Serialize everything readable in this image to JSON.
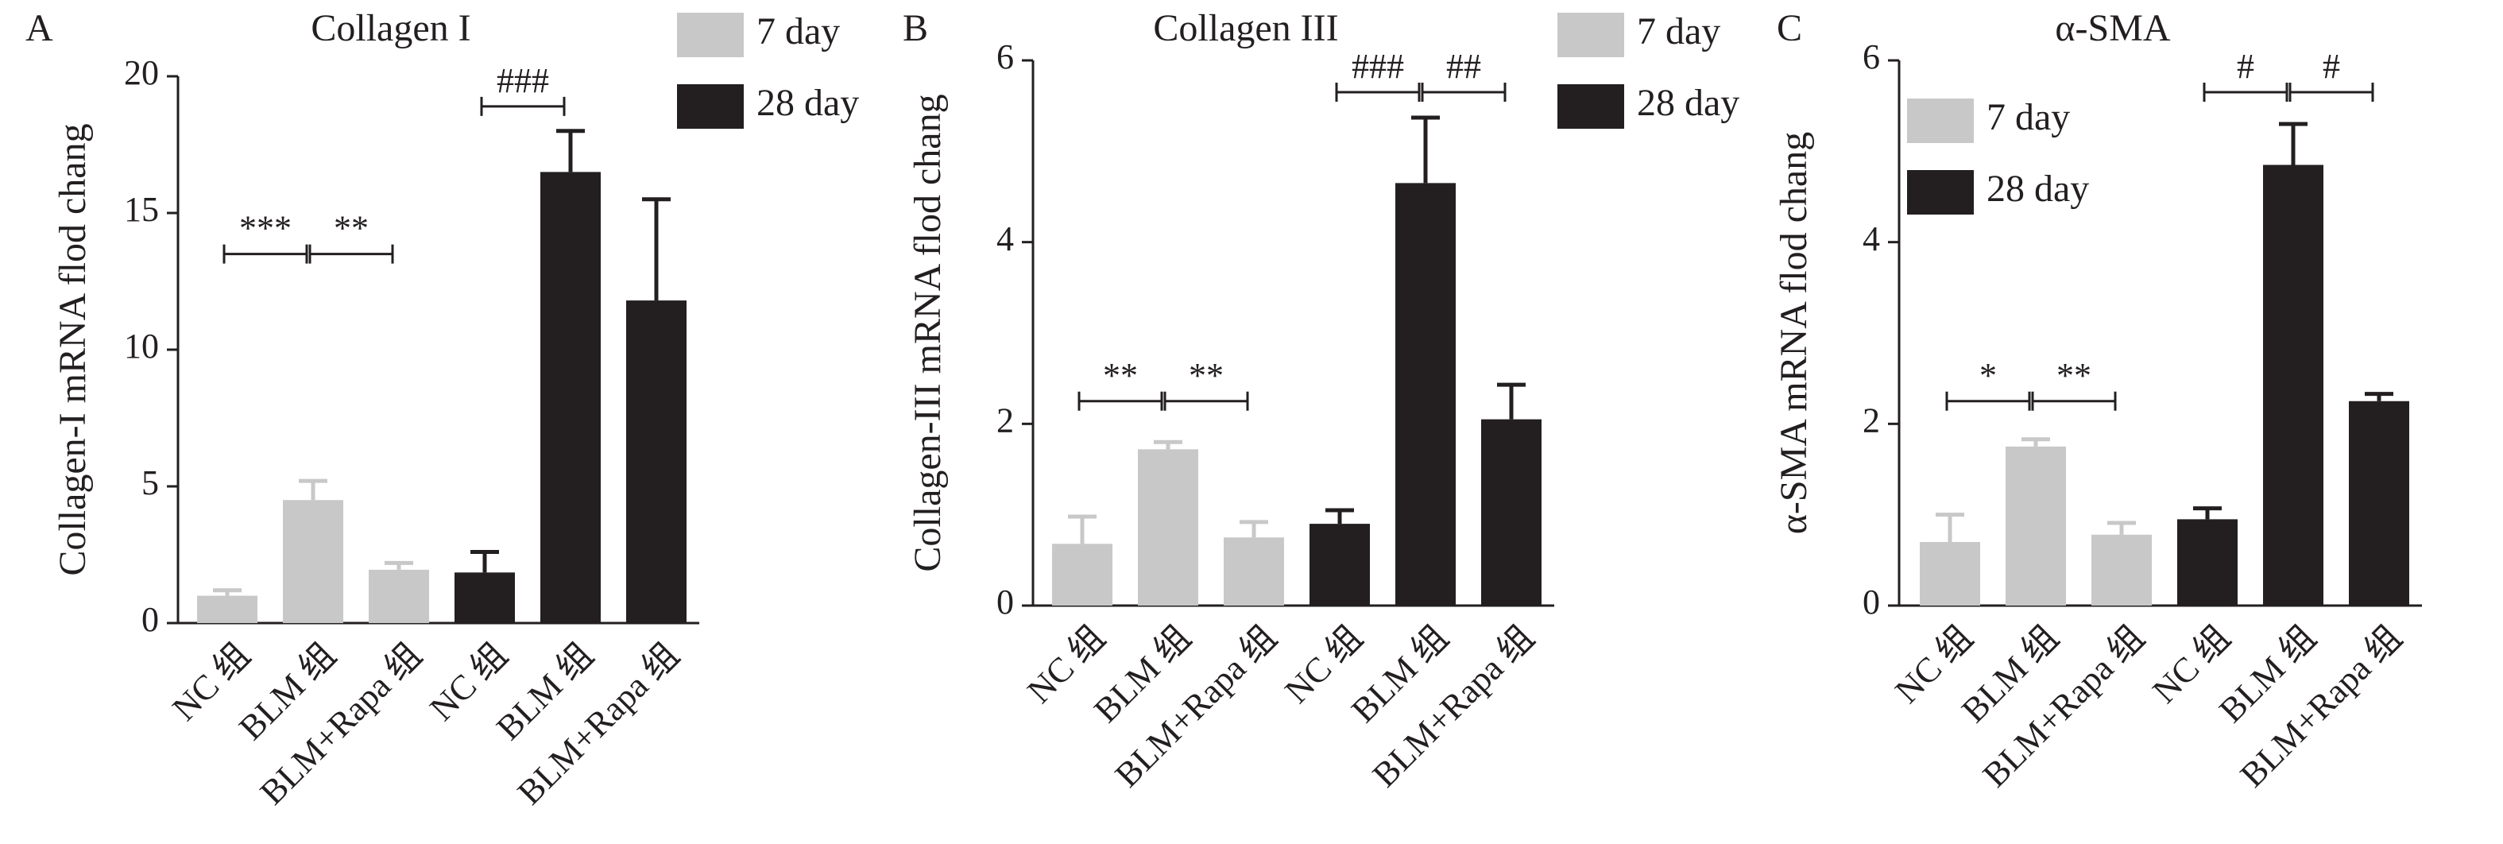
{
  "chart_data": [
    {
      "type": "bar",
      "panel": "A",
      "title": "Collagen I",
      "y_label": "Collagen-I mRNA  flod chang",
      "categories": [
        "NC 组",
        "BLM 组",
        "BLM+Rapa 组",
        "NC 组",
        "BLM 组",
        "BLM+Rapa 组"
      ],
      "series": [
        {
          "name": "7 day",
          "color": "#c8c8c8",
          "values": [
            1.0,
            4.5,
            1.95,
            null,
            null,
            null
          ],
          "errors": [
            0.2,
            0.7,
            0.25,
            null,
            null,
            null
          ]
        },
        {
          "name": "28 day",
          "color": "#231f20",
          "values": [
            null,
            null,
            null,
            1.85,
            16.5,
            11.8
          ],
          "errors": [
            null,
            null,
            null,
            0.75,
            1.5,
            3.7
          ]
        }
      ],
      "ylim": [
        0,
        20
      ],
      "yticks": [
        0,
        5,
        10,
        15,
        20
      ],
      "legend": "outside right",
      "annotations": [
        {
          "text": "***",
          "from": 0,
          "to": 1,
          "y": 13.5
        },
        {
          "text": "**",
          "from": 1,
          "to": 2,
          "y": 13.5
        },
        {
          "text": "###",
          "from": 3,
          "to": 4,
          "y": 18.9
        }
      ]
    },
    {
      "type": "bar",
      "panel": "B",
      "title": "Collagen III",
      "y_label": "Collagen-III mRNA  flod chang",
      "categories": [
        "NC 组",
        "BLM 组",
        "BLM+Rapa 组",
        "NC 组",
        "BLM 组",
        "BLM+Rapa 组"
      ],
      "series": [
        {
          "name": "7 day",
          "color": "#c8c8c8",
          "values": [
            0.68,
            1.72,
            0.75,
            null,
            null,
            null
          ],
          "errors": [
            0.3,
            0.08,
            0.17,
            null,
            null,
            null
          ]
        },
        {
          "name": "28 day",
          "color": "#231f20",
          "values": [
            null,
            null,
            null,
            0.9,
            4.65,
            2.05
          ],
          "errors": [
            null,
            null,
            null,
            0.15,
            0.72,
            0.38
          ]
        }
      ],
      "ylim": [
        0,
        6
      ],
      "yticks": [
        0,
        2,
        4,
        6
      ],
      "legend": "outside right",
      "annotations": [
        {
          "text": "**",
          "from": 0,
          "to": 1,
          "y": 2.25
        },
        {
          "text": "**",
          "from": 1,
          "to": 2,
          "y": 2.25
        },
        {
          "text": "###",
          "from": 3,
          "to": 4,
          "y": 5.65
        },
        {
          "text": "##",
          "from": 4,
          "to": 5,
          "y": 5.65
        }
      ]
    },
    {
      "type": "bar",
      "panel": "C",
      "title": "α-SMA",
      "y_label": "α-SMA mRNA flod chang",
      "categories": [
        "NC 组",
        "BLM 组",
        "BLM+Rapa 组",
        "NC 组",
        "BLM 组",
        "BLM+Rapa 组"
      ],
      "series": [
        {
          "name": "7 day",
          "color": "#c8c8c8",
          "values": [
            0.7,
            1.75,
            0.78,
            null,
            null,
            null
          ],
          "errors": [
            0.3,
            0.08,
            0.13,
            null,
            null,
            null
          ]
        },
        {
          "name": "28 day",
          "color": "#231f20",
          "values": [
            null,
            null,
            null,
            0.95,
            4.85,
            2.25
          ],
          "errors": [
            null,
            null,
            null,
            0.12,
            0.45,
            0.08
          ]
        }
      ],
      "ylim": [
        0,
        6
      ],
      "yticks": [
        0,
        2,
        4,
        6
      ],
      "legend": "upper left",
      "annotations": [
        {
          "text": "*",
          "from": 0,
          "to": 1,
          "y": 2.25
        },
        {
          "text": "**",
          "from": 1,
          "to": 2,
          "y": 2.25
        },
        {
          "text": "#",
          "from": 3,
          "to": 4,
          "y": 5.65
        },
        {
          "text": "#",
          "from": 4,
          "to": 5,
          "y": 5.65
        }
      ]
    }
  ]
}
